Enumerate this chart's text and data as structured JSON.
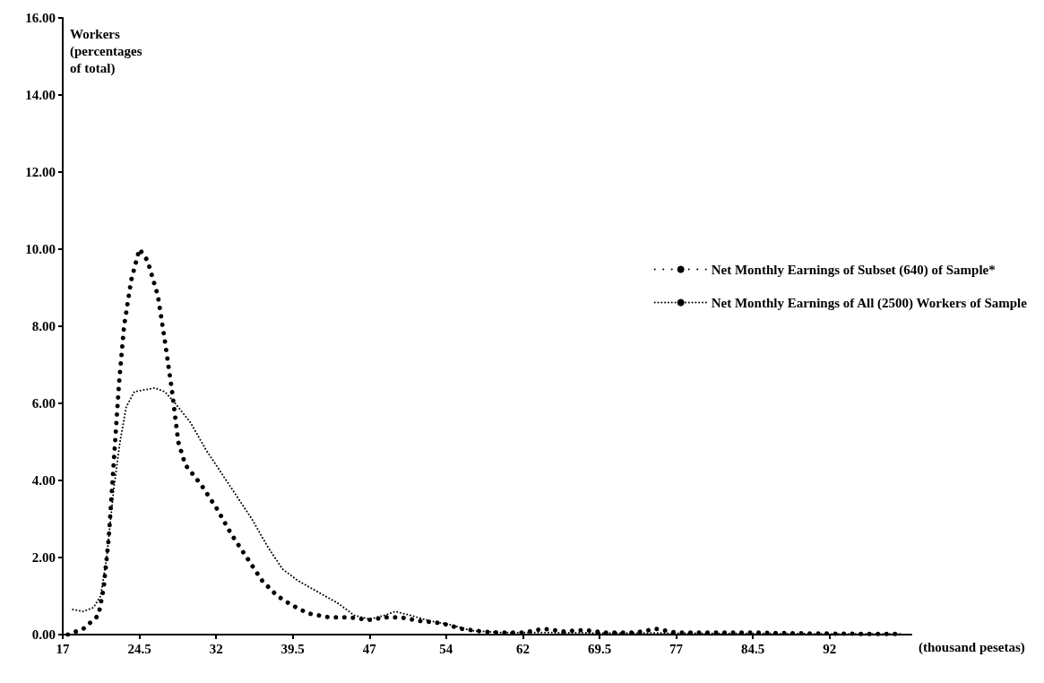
{
  "chart_data": {
    "type": "line",
    "xlabel": "(thousand pesetas)",
    "ylabel": "Workers (percentages of total)",
    "xlim": [
      17,
      100
    ],
    "xticks": [
      17,
      24.5,
      32,
      39.5,
      47,
      {
        "value": 54.5,
        "label": "54"
      },
      62,
      69.5,
      77,
      84.5,
      92
    ],
    "ylim": [
      0,
      16
    ],
    "yticks": [
      {
        "value": 0,
        "label": "0.00"
      },
      {
        "value": 2,
        "label": "2.00"
      },
      {
        "value": 4,
        "label": "4.00"
      },
      {
        "value": 6,
        "label": "6.00"
      },
      {
        "value": 8,
        "label": "8.00"
      },
      {
        "value": 10,
        "label": "10.00"
      },
      {
        "value": 12,
        "label": "12.00"
      },
      {
        "value": 14,
        "label": "14.00"
      },
      {
        "value": 16,
        "label": "16.00"
      }
    ],
    "grid": false,
    "legend": "right",
    "marker": "none",
    "line_style": "dotted",
    "series": [
      {
        "name": "Net Monthly Earnings of Subset (640) of Sample*",
        "color": "#000000",
        "x": [
          17.5,
          19,
          20.5,
          21,
          21.5,
          22,
          22.5,
          23,
          23.7,
          24.5,
          25.3,
          26.3,
          27,
          27.7,
          28.3,
          29,
          30.5,
          32,
          33.5,
          35,
          36.5,
          38,
          39.5,
          41,
          43,
          45,
          47,
          48.5,
          50,
          52,
          54,
          56,
          58,
          60,
          62,
          64,
          66,
          68,
          70,
          73,
          75,
          77,
          80,
          85,
          90,
          95,
          99
        ],
        "values": [
          0,
          0.15,
          0.5,
          1.2,
          2.5,
          4.5,
          6.5,
          8,
          9.2,
          10,
          9.7,
          8.8,
          7.6,
          6.3,
          5,
          4.4,
          3.9,
          3.3,
          2.6,
          2,
          1.4,
          1,
          0.75,
          0.55,
          0.45,
          0.45,
          0.38,
          0.45,
          0.45,
          0.35,
          0.3,
          0.15,
          0.08,
          0.05,
          0.05,
          0.15,
          0.08,
          0.12,
          0.05,
          0.05,
          0.15,
          0.05,
          0.05,
          0.05,
          0.03,
          0.02,
          0.02
        ]
      },
      {
        "name": "Net Monthly Earnings of All (2500) Workers of Sample",
        "color": "#000000",
        "x": [
          18,
          19,
          20,
          20.7,
          21.3,
          22,
          22.6,
          23.2,
          24,
          25,
          26,
          27,
          28,
          29.5,
          31,
          32.5,
          34,
          35.5,
          37,
          38.5,
          40,
          42,
          44,
          45.5,
          47,
          48.5,
          49.5,
          51,
          53,
          55,
          57,
          60,
          65,
          70,
          75,
          80,
          85,
          90,
          99
        ],
        "values": [
          0.65,
          0.6,
          0.7,
          1,
          2,
          3.8,
          5,
          5.9,
          6.3,
          6.35,
          6.4,
          6.3,
          6,
          5.5,
          4.8,
          4.2,
          3.6,
          3,
          2.3,
          1.7,
          1.4,
          1.1,
          0.8,
          0.5,
          0.4,
          0.5,
          0.6,
          0.5,
          0.35,
          0.25,
          0.1,
          0.05,
          0.05,
          0.04,
          0.04,
          0.03,
          0.03,
          0.02,
          0.02
        ]
      }
    ]
  }
}
